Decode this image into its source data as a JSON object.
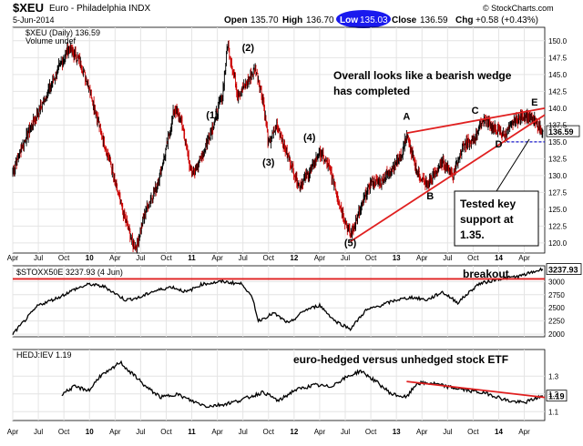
{
  "header": {
    "symbol": "$XEU",
    "name": "Euro - Philadelphia INDX",
    "date": "5-Jun-2014",
    "source": "© StockCharts.com",
    "open_label": "Open",
    "open": "135.70",
    "high_label": "High",
    "high": "136.70",
    "low_label": "Low",
    "low": "135.03",
    "close_label": "Close",
    "close": "136.59",
    "chg_label": "Chg",
    "chg": "+0.58 (+0.43%)"
  },
  "chart_data": [
    {
      "type": "bar",
      "title": "$XEU (Daily) 136.59",
      "legend": [
        "$XEU (Daily) 136.59",
        "Volume undef"
      ],
      "last_value": 136.59,
      "last_value_label": "136.59",
      "ylim": [
        118.5,
        152
      ],
      "yticks": [
        120.0,
        122.5,
        125.0,
        127.5,
        130.0,
        132.5,
        135.0,
        137.5,
        140.0,
        142.5,
        145.0,
        147.5,
        150.0
      ],
      "ytick_labels": [
        "120.0",
        "122.5",
        "125.0",
        "127.5",
        "130.0",
        "132.5",
        "135.0",
        "137.5",
        "140.0",
        "142.5",
        "145.0",
        "147.5",
        "150.0"
      ],
      "x_range": [
        2009.25,
        2014.45
      ],
      "series": [
        {
          "x": [
            2009.25,
            2009.33,
            2009.45,
            2009.55,
            2009.7,
            2009.8,
            2009.9,
            2010.0,
            2010.05,
            2010.12,
            2010.2,
            2010.3,
            2010.38,
            2010.42,
            2010.46,
            2010.55,
            2010.65,
            2010.75,
            2010.83,
            2010.9,
            2011.0,
            2011.1,
            2011.2,
            2011.3,
            2011.35,
            2011.45,
            2011.55,
            2011.62,
            2011.7,
            2011.75,
            2011.83,
            2011.95,
            2012.05,
            2012.15,
            2012.25,
            2012.35,
            2012.45,
            2012.55,
            2012.65,
            2012.75,
            2012.85,
            2012.95,
            2013.05,
            2013.1,
            2013.2,
            2013.3,
            2013.45,
            2013.55,
            2013.65,
            2013.75,
            2013.85,
            2013.95,
            2014.05,
            2014.15,
            2014.25,
            2014.35,
            2014.43
          ],
          "values": [
            130.5,
            134,
            138,
            141,
            146,
            149,
            147,
            143,
            140,
            136,
            132,
            126,
            122,
            120,
            119.5,
            125,
            128,
            134,
            140,
            138,
            130,
            133,
            137,
            142,
            149.5,
            142,
            144,
            146,
            141,
            134.5,
            137.5,
            132.5,
            128.5,
            130.5,
            133.5,
            131,
            125.5,
            121,
            125,
            129,
            129,
            131,
            133,
            136,
            130.5,
            128.5,
            132,
            130,
            134.5,
            135,
            138.5,
            137,
            136,
            138,
            139,
            138,
            136.6
          ]
        }
      ],
      "annotations": [
        {
          "text": "Overall looks like a bearish wedge has completed"
        },
        {
          "text": "(1)",
          "x": 2011.2,
          "y": 138.5
        },
        {
          "text": "(2)",
          "x": 2011.55,
          "y": 148.5
        },
        {
          "text": "(3)",
          "x": 2011.75,
          "y": 131.5
        },
        {
          "text": "(4)",
          "x": 2012.15,
          "y": 135.2
        },
        {
          "text": "(5)",
          "x": 2012.55,
          "y": 119.5
        },
        {
          "text": "A",
          "x": 2013.1,
          "y": 138.3
        },
        {
          "text": "B",
          "x": 2013.33,
          "y": 126.5
        },
        {
          "text": "C",
          "x": 2013.77,
          "y": 139.2
        },
        {
          "text": "D",
          "x": 2014.0,
          "y": 134.2
        },
        {
          "text": "E",
          "x": 2014.35,
          "y": 140.4
        },
        {
          "text": "Tested key support at 1.35."
        }
      ],
      "trendlines": [
        {
          "from": [
            2013.1,
            136.3
          ],
          "to": [
            2014.45,
            140.0
          ]
        },
        {
          "from": [
            2012.55,
            120.2
          ],
          "to": [
            2014.45,
            139.0
          ]
        }
      ],
      "support_line": {
        "y": 135.0,
        "from": 2014.08,
        "to": 2014.45
      }
    },
    {
      "type": "line",
      "title": "$STOXX50E 3237.93 (4 Jun)",
      "last_value": 3237.93,
      "last_value_label": "3237.93",
      "ylim": [
        1950,
        3300
      ],
      "yticks": [
        2000,
        2250,
        2500,
        2750,
        3000
      ],
      "ytick_labels": [
        "2000",
        "2250",
        "2500",
        "2750",
        "3000"
      ],
      "series": [
        {
          "x": [
            2009.25,
            2009.5,
            2009.7,
            2009.85,
            2010.0,
            2010.15,
            2010.35,
            2010.5,
            2010.6,
            2010.8,
            2010.95,
            2011.1,
            2011.3,
            2011.5,
            2011.6,
            2011.65,
            2011.8,
            2011.95,
            2012.1,
            2012.25,
            2012.4,
            2012.55,
            2012.7,
            2012.85,
            2013.0,
            2013.15,
            2013.3,
            2013.45,
            2013.6,
            2013.8,
            2014.0,
            2014.2,
            2014.43
          ],
          "values": [
            2000,
            2550,
            2700,
            2850,
            2950,
            2900,
            2650,
            2700,
            2800,
            2900,
            2800,
            2950,
            3000,
            2950,
            2650,
            2250,
            2400,
            2200,
            2450,
            2550,
            2250,
            2100,
            2450,
            2550,
            2650,
            2700,
            2650,
            2800,
            2600,
            2950,
            3050,
            3100,
            3237
          ]
        }
      ],
      "horizontal_line": 3050,
      "annotations": [
        {
          "text": "breakout",
          "x": 2014.2,
          "y": 3150
        }
      ]
    },
    {
      "type": "line",
      "title": "HEDJ:IEV 1.19",
      "last_value": 1.19,
      "last_value_label": "1.19",
      "ylim": [
        1.05,
        1.45
      ],
      "yticks": [
        1.1,
        1.2,
        1.3
      ],
      "ytick_labels": [
        "1.1",
        "1.2",
        "1.3"
      ],
      "series": [
        {
          "x": [
            2009.73,
            2009.85,
            2010.0,
            2010.1,
            2010.2,
            2010.3,
            2010.4,
            2010.45,
            2010.55,
            2010.7,
            2010.85,
            2011.0,
            2011.15,
            2011.3,
            2011.45,
            2011.55,
            2011.7,
            2011.85,
            2012.0,
            2012.2,
            2012.35,
            2012.5,
            2012.65,
            2012.8,
            2012.95,
            2013.1,
            2013.2,
            2013.35,
            2013.5,
            2013.7,
            2013.9,
            2014.1,
            2014.25,
            2014.43
          ],
          "values": [
            1.2,
            1.24,
            1.22,
            1.3,
            1.33,
            1.38,
            1.32,
            1.3,
            1.24,
            1.18,
            1.2,
            1.16,
            1.13,
            1.14,
            1.16,
            1.18,
            1.21,
            1.16,
            1.22,
            1.25,
            1.24,
            1.29,
            1.33,
            1.27,
            1.2,
            1.18,
            1.26,
            1.26,
            1.24,
            1.22,
            1.2,
            1.16,
            1.15,
            1.19
          ]
        }
      ],
      "trendline": {
        "from": [
          2013.1,
          1.27
        ],
        "to": [
          2014.45,
          1.18
        ]
      },
      "annotations": [
        {
          "text": "euro-hedged versus unhedged stock ETF"
        }
      ]
    }
  ],
  "x_axis": {
    "ticks": [
      {
        "label": "Apr",
        "x": 2009.25,
        "bold": false
      },
      {
        "label": "Jul",
        "x": 2009.5,
        "bold": false
      },
      {
        "label": "Oct",
        "x": 2009.75,
        "bold": false
      },
      {
        "label": "10",
        "x": 2010.0,
        "bold": true
      },
      {
        "label": "Apr",
        "x": 2010.25,
        "bold": false
      },
      {
        "label": "Jul",
        "x": 2010.5,
        "bold": false
      },
      {
        "label": "Oct",
        "x": 2010.75,
        "bold": false
      },
      {
        "label": "11",
        "x": 2011.0,
        "bold": true
      },
      {
        "label": "Apr",
        "x": 2011.25,
        "bold": false
      },
      {
        "label": "Jul",
        "x": 2011.5,
        "bold": false
      },
      {
        "label": "Oct",
        "x": 2011.75,
        "bold": false
      },
      {
        "label": "12",
        "x": 2012.0,
        "bold": true
      },
      {
        "label": "Apr",
        "x": 2012.25,
        "bold": false
      },
      {
        "label": "Jul",
        "x": 2012.5,
        "bold": false
      },
      {
        "label": "Oct",
        "x": 2012.75,
        "bold": false
      },
      {
        "label": "13",
        "x": 2013.0,
        "bold": true
      },
      {
        "label": "Apr",
        "x": 2013.25,
        "bold": false
      },
      {
        "label": "Jul",
        "x": 2013.5,
        "bold": false
      },
      {
        "label": "Oct",
        "x": 2013.75,
        "bold": false
      },
      {
        "label": "14",
        "x": 2014.0,
        "bold": true
      },
      {
        "label": "Apr",
        "x": 2014.25,
        "bold": false
      }
    ]
  },
  "colors": {
    "price_up": "#000000",
    "price_down": "#cc0000",
    "trendline": "#e02020",
    "support": "#1a1acc",
    "low_highlight_bg": "#1a1aee",
    "low_highlight_text": "#ffffff",
    "grid": "#e4e4e4",
    "axis_label_bg": "#000000",
    "axis_label_text": "#ffffff"
  }
}
